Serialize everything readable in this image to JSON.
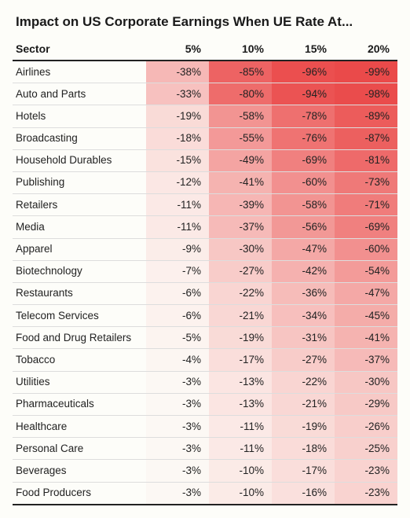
{
  "title": "Impact on US Corporate Earnings When UE Rate At...",
  "table": {
    "type": "table",
    "background_color": "#fdfdf9",
    "text_color": "#222222",
    "header_fontsize": 14,
    "body_fontsize": 13.5,
    "heat_formula": "lerp #fdfdf9 → #ea4848 by |value|/100",
    "columns": [
      "Sector",
      "5%",
      "10%",
      "15%",
      "20%"
    ],
    "rows": [
      {
        "sector": "Airlines",
        "values": [
          -38,
          -85,
          -96,
          -99
        ]
      },
      {
        "sector": "Auto and Parts",
        "values": [
          -33,
          -80,
          -94,
          -98
        ]
      },
      {
        "sector": "Hotels",
        "values": [
          -19,
          -58,
          -78,
          -89
        ]
      },
      {
        "sector": "Broadcasting",
        "values": [
          -18,
          -55,
          -76,
          -87
        ]
      },
      {
        "sector": "Household Durables",
        "values": [
          -15,
          -49,
          -69,
          -81
        ]
      },
      {
        "sector": "Publishing",
        "values": [
          -12,
          -41,
          -60,
          -73
        ]
      },
      {
        "sector": "Retailers",
        "values": [
          -11,
          -39,
          -58,
          -71
        ]
      },
      {
        "sector": "Media",
        "values": [
          -11,
          -37,
          -56,
          -69
        ]
      },
      {
        "sector": "Apparel",
        "values": [
          -9,
          -30,
          -47,
          -60
        ]
      },
      {
        "sector": "Biotechnology",
        "values": [
          -7,
          -27,
          -42,
          -54
        ]
      },
      {
        "sector": "Restaurants",
        "values": [
          -6,
          -22,
          -36,
          -47
        ]
      },
      {
        "sector": "Telecom Services",
        "values": [
          -6,
          -21,
          -34,
          -45
        ]
      },
      {
        "sector": "Food and Drug Retailers",
        "values": [
          -5,
          -19,
          -31,
          -41
        ]
      },
      {
        "sector": "Tobacco",
        "values": [
          -4,
          -17,
          -27,
          -37
        ]
      },
      {
        "sector": "Utilities",
        "values": [
          -3,
          -13,
          -22,
          -30
        ]
      },
      {
        "sector": "Pharmaceuticals",
        "values": [
          -3,
          -13,
          -21,
          -29
        ]
      },
      {
        "sector": "Healthcare",
        "values": [
          -3,
          -11,
          -19,
          -26
        ]
      },
      {
        "sector": "Personal Care",
        "values": [
          -3,
          -11,
          -18,
          -25
        ]
      },
      {
        "sector": "Beverages",
        "values": [
          -3,
          -10,
          -17,
          -23
        ]
      },
      {
        "sector": "Food Producers",
        "values": [
          -3,
          -10,
          -16,
          -23
        ]
      }
    ],
    "heat_base_color": "#fdfdf9",
    "heat_peak_color": "#ea4848"
  }
}
